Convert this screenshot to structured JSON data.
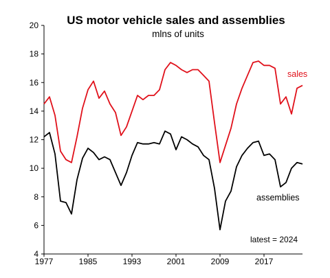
{
  "chart_data": {
    "type": "line",
    "title": "US motor vehicle sales and assemblies",
    "subtitle": "mlns of units",
    "note": "latest = 2024",
    "xlabel": "",
    "ylabel": "",
    "xlim": [
      1977,
      2024
    ],
    "ylim": [
      4,
      20
    ],
    "x_ticks": [
      1977,
      1985,
      1993,
      2001,
      2009,
      2017
    ],
    "y_ticks": [
      4,
      6,
      8,
      10,
      12,
      14,
      16,
      18,
      20
    ],
    "grid": false,
    "legend": "inline",
    "x": [
      1977,
      1978,
      1979,
      1980,
      1981,
      1982,
      1983,
      1984,
      1985,
      1986,
      1987,
      1988,
      1989,
      1990,
      1991,
      1992,
      1993,
      1994,
      1995,
      1996,
      1997,
      1998,
      1999,
      2000,
      2001,
      2002,
      2003,
      2004,
      2005,
      2006,
      2007,
      2008,
      2009,
      2010,
      2011,
      2012,
      2013,
      2014,
      2015,
      2016,
      2017,
      2018,
      2019,
      2020,
      2021,
      2022,
      2023,
      2024
    ],
    "series": [
      {
        "name": "sales",
        "color": "#e0101a",
        "values": [
          14.5,
          15.0,
          13.7,
          11.2,
          10.6,
          10.4,
          12.2,
          14.2,
          15.5,
          16.1,
          14.9,
          15.4,
          14.5,
          13.9,
          12.3,
          12.9,
          14.0,
          15.1,
          14.8,
          15.1,
          15.1,
          15.5,
          16.9,
          17.4,
          17.2,
          16.9,
          16.7,
          16.9,
          16.9,
          16.5,
          16.1,
          13.2,
          10.4,
          11.6,
          12.8,
          14.5,
          15.6,
          16.5,
          17.4,
          17.5,
          17.2,
          17.2,
          17.0,
          14.5,
          15.0,
          13.8,
          15.6,
          15.8
        ]
      },
      {
        "name": "assemblies",
        "color": "#000000",
        "values": [
          12.2,
          12.5,
          11.0,
          7.7,
          7.6,
          6.8,
          9.2,
          10.7,
          11.4,
          11.1,
          10.6,
          10.8,
          10.6,
          9.7,
          8.8,
          9.7,
          10.9,
          11.8,
          11.7,
          11.7,
          11.8,
          11.7,
          12.6,
          12.4,
          11.3,
          12.2,
          12.0,
          11.7,
          11.5,
          10.9,
          10.6,
          8.6,
          5.7,
          7.7,
          8.4,
          10.1,
          10.9,
          11.4,
          11.8,
          11.9,
          10.9,
          11.0,
          10.6,
          8.7,
          9.0,
          10.0,
          10.4,
          10.3
        ]
      }
    ]
  }
}
